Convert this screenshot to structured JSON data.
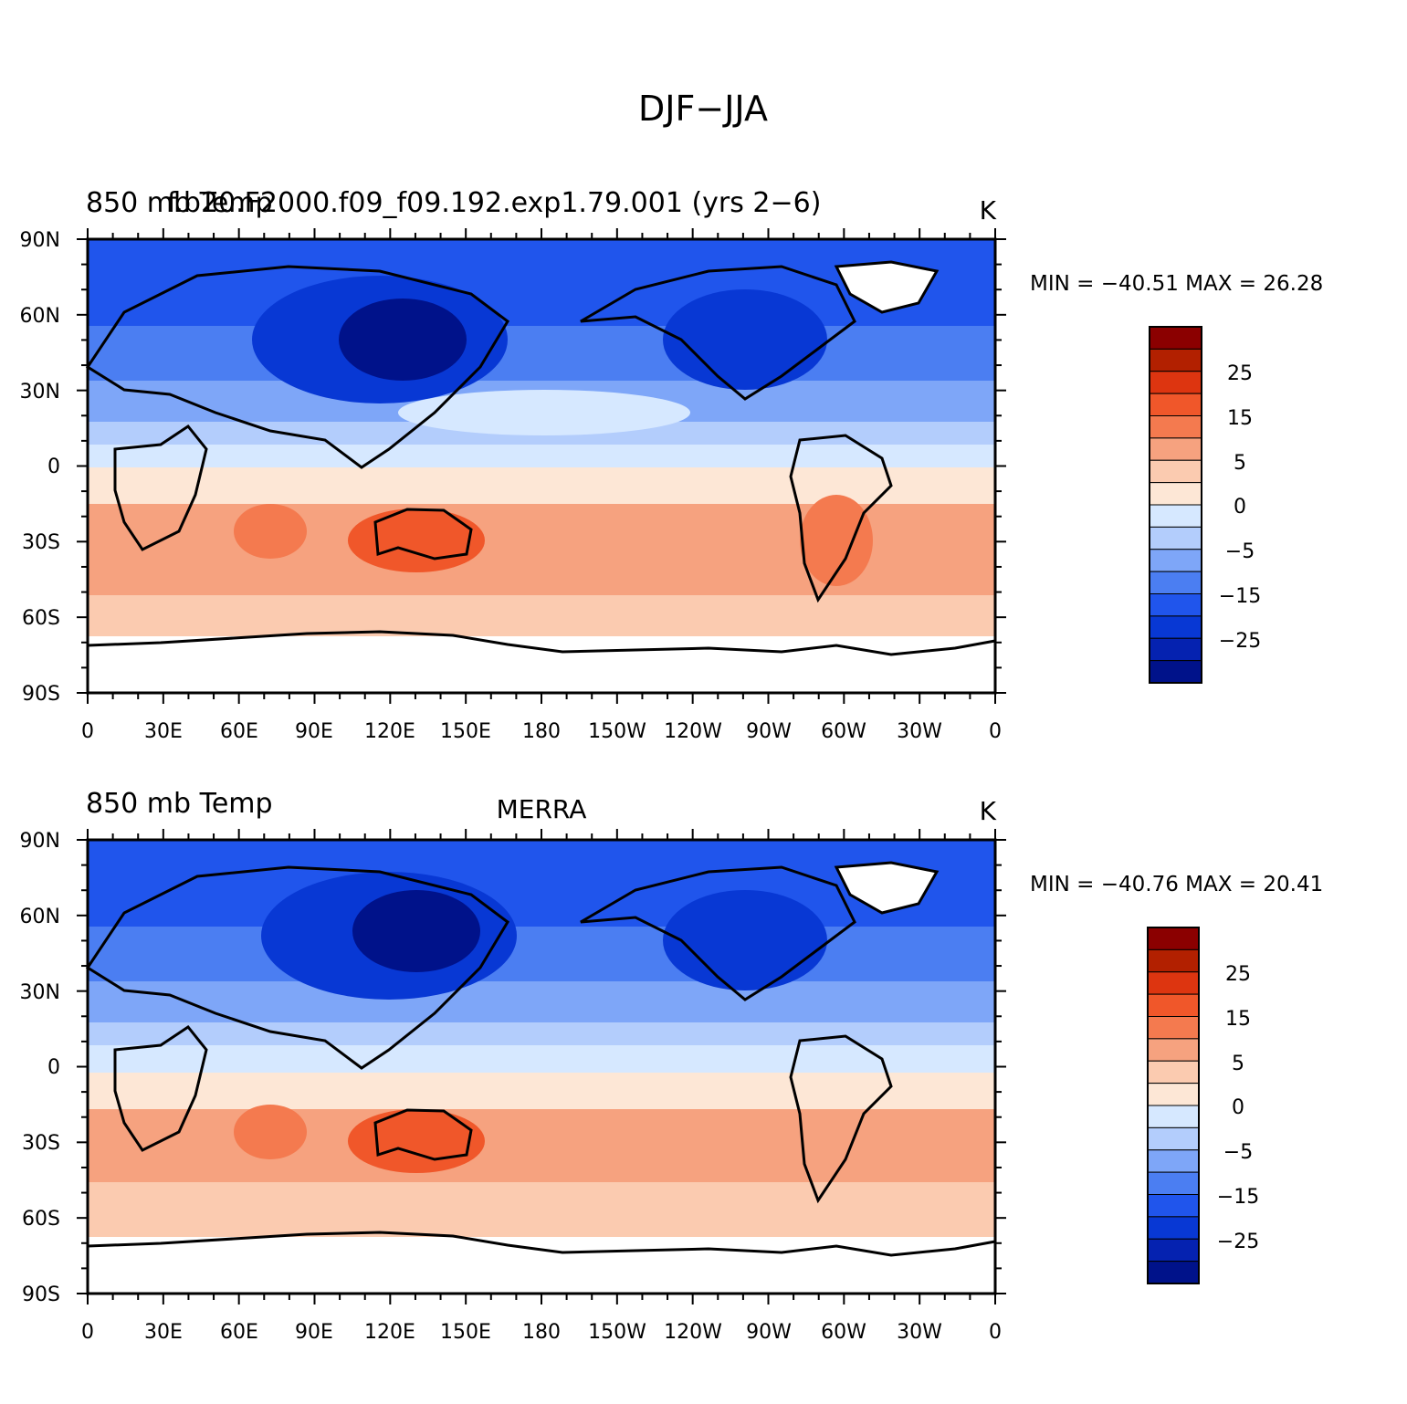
{
  "figure": {
    "title": "DJF−JJA"
  },
  "panels": [
    {
      "left_title": "850  mb Temp",
      "left_title_overlay": "f.b20.F2000.f09_f09.192.exp1.79.001 (yrs 2−6)",
      "center_title": "",
      "units": "K",
      "min_max": "MIN = −40.51  MAX =   26.28"
    },
    {
      "left_title": "850  mb Temp",
      "left_title_overlay": "",
      "center_title": "MERRA",
      "units": "K",
      "min_max": "MIN = −40.76  MAX =   20.41"
    }
  ],
  "axes": {
    "lat_labels": [
      "90N",
      "60N",
      "30N",
      "0",
      "30S",
      "60S",
      "90S"
    ],
    "lon_labels": [
      "0",
      "30E",
      "60E",
      "90E",
      "120E",
      "150E",
      "180",
      "150W",
      "120W",
      "90W",
      "60W",
      "30W",
      "0"
    ]
  },
  "colorbar": {
    "labels": [
      "25",
      "15",
      "5",
      "0",
      "−5",
      "−15",
      "−25"
    ],
    "colors": [
      "#8b0000",
      "#b22000",
      "#dd3510",
      "#f0572a",
      "#f47a4f",
      "#f6a27f",
      "#fbcbb0",
      "#fde7d6",
      "#d6e8ff",
      "#b3cdfc",
      "#7ea6f8",
      "#4b7ef2",
      "#2055ec",
      "#0838d4",
      "#0522b0",
      "#00128a"
    ]
  }
}
